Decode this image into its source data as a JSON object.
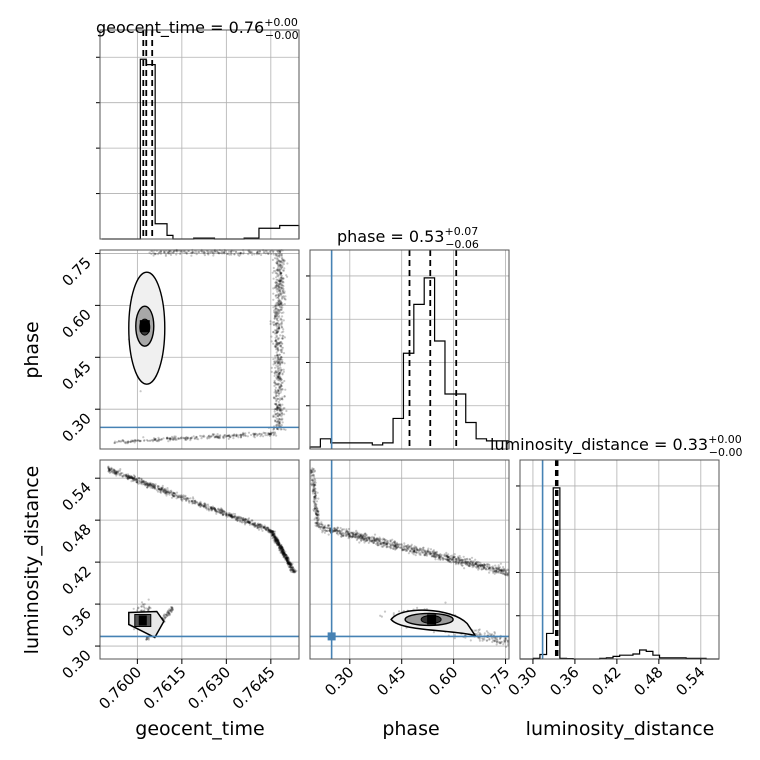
{
  "chart_data": {
    "type": "corner",
    "parameters": [
      "geocent_time",
      "phase",
      "luminosity_distance"
    ],
    "axis_labels": {
      "geocent_time": "geocent_time",
      "phase": "phase",
      "luminosity_distance": "luminosity_distance"
    },
    "titles": [
      {
        "name": "geocent_time",
        "value": "0.76",
        "plus": "+0.00",
        "minus": "−0.00"
      },
      {
        "name": "phase",
        "value": "0.53",
        "plus": "+0.07",
        "minus": "−0.06"
      },
      {
        "name": "luminosity_distance",
        "value": "0.33",
        "plus": "+0.00",
        "minus": "−0.00"
      }
    ],
    "ranges": {
      "geocent_time": [
        0.75874,
        0.76545
      ],
      "phase": [
        0.185,
        0.76
      ],
      "luminosity_distance": [
        0.2815,
        0.566
      ]
    },
    "ticks": {
      "geocent_time": [
        "0.7600",
        "0.7615",
        "0.7630",
        "0.7645"
      ],
      "phase": [
        "0.30",
        "0.45",
        "0.60",
        "0.75"
      ],
      "luminosity_distance": [
        "0.30",
        "0.36",
        "0.42",
        "0.48",
        "0.54"
      ]
    },
    "injection": {
      "geocent_time": null,
      "phase": 0.2475,
      "luminosity_distance": 0.3138
    },
    "quantiles": {
      "geocent_time": [
        0.7602,
        0.7603,
        0.7605
      ],
      "phase": [
        0.4725,
        0.5325,
        0.6075
      ],
      "luminosity_distance": [
        0.3328,
        0.334,
        0.3352
      ]
    },
    "histograms": {
      "geocent_time": {
        "edges": [
          0.7588,
          0.7593,
          0.7597,
          0.7601,
          0.7602,
          0.7603,
          0.7604,
          0.7606,
          0.761,
          0.7612,
          0.7619,
          0.7626,
          0.7636,
          0.7641,
          0.7648,
          0.76545
        ],
        "counts": [
          0,
          0,
          0,
          1.0,
          1.0,
          0.97,
          0.97,
          0.085,
          0.02,
          0,
          0.005,
          0,
          0.005,
          0.06,
          0.075
        ]
      },
      "phase": {
        "edges": [
          0.185,
          0.215,
          0.245,
          0.275,
          0.305,
          0.335,
          0.365,
          0.395,
          0.425,
          0.455,
          0.485,
          0.515,
          0.545,
          0.575,
          0.605,
          0.635,
          0.665,
          0.695,
          0.725,
          0.76
        ],
        "counts": [
          0.01,
          0.05,
          0.03,
          0.03,
          0.03,
          0.03,
          0.02,
          0.03,
          0.15,
          0.47,
          0.71,
          0.84,
          0.53,
          0.27,
          0.27,
          0.13,
          0.05,
          0.04,
          0.04
        ]
      },
      "luminosity_distance": {
        "edges": [
          0.2815,
          0.291,
          0.3005,
          0.31,
          0.3195,
          0.329,
          0.3385,
          0.348,
          0.3575,
          0.367,
          0.3765,
          0.386,
          0.3955,
          0.405,
          0.4145,
          0.424,
          0.4335,
          0.443,
          0.4525,
          0.462,
          0.4715,
          0.481,
          0.4905,
          0.5,
          0.5095,
          0.519,
          0.5285,
          0.538,
          0.5475,
          0.566
        ],
        "counts": [
          0,
          0,
          0.004,
          0.026,
          0.148,
          0.99,
          0.004,
          0.002,
          0,
          0,
          0,
          0,
          0.004,
          0.007,
          0.015,
          0.022,
          0.022,
          0.029,
          0.052,
          0.044,
          0.022,
          0.007,
          0.007,
          0.007,
          0.007,
          0.004,
          0.004,
          0.004,
          0
        ]
      }
    },
    "grid": true
  }
}
